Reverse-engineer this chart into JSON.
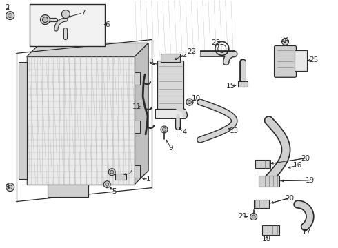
{
  "bg_color": "#ffffff",
  "line_color": "#2a2a2a",
  "grid_color": "#999999",
  "fill_light": "#e8e8e8",
  "fill_mid": "#d0d0d0",
  "fill_dark": "#b8b8b8",
  "font_size": 7.5
}
